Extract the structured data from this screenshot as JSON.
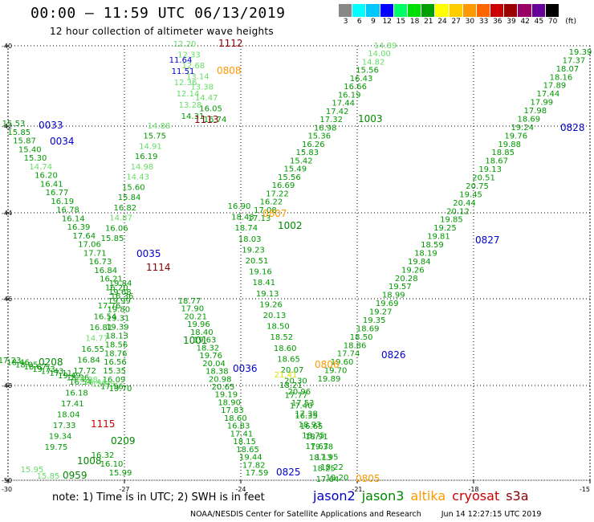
{
  "header": {
    "title": "00:00 – 11:59 UTC 06/13/2019",
    "subtitle": "12 hour collection of altimeter wave heights"
  },
  "legend": {
    "unit": "(ft)",
    "labels": [
      "3",
      "6",
      "9",
      "12",
      "15",
      "18",
      "21",
      "24",
      "27",
      "30",
      "33",
      "36",
      "39",
      "42",
      "45",
      "70"
    ],
    "colors": [
      "#888888",
      "#00ffff",
      "#00c8ff",
      "#0000ff",
      "#00ff66",
      "#00dd00",
      "#00a000",
      "#ffff00",
      "#ffcc00",
      "#ff9900",
      "#ff6600",
      "#cc0000",
      "#990000",
      "#990066",
      "#660099",
      "#000000"
    ]
  },
  "axes": {
    "lat_labels": [
      "-40",
      "-42",
      "-44",
      "-46",
      "-48",
      "-50"
    ],
    "lon_labels": [
      "-30",
      "-27",
      "-24",
      "-21",
      "-18",
      "-15"
    ]
  },
  "satellites": [
    {
      "name": "jason2",
      "color": "#0000cc"
    },
    {
      "name": "jason3",
      "color": "#008800"
    },
    {
      "name": "altika",
      "color": "#ff9900"
    },
    {
      "name": "cryosat",
      "color": "#cc0000"
    },
    {
      "name": "s3a",
      "color": "#880000"
    }
  ],
  "note": "note:  1) Time is in UTC;  2) SWH is in feet",
  "credit": "NOAA/NESDIS Center for Satellite Applications and Research",
  "timestamp": "Jun 14 12:27:15 UTC 2019",
  "tracks": [
    {
      "time": "1112",
      "color": "#880000",
      "values": [
        "12.20",
        "12.33",
        "12.68",
        "13.14",
        "13.38",
        "14.47",
        "16.05",
        "16.74"
      ],
      "cmap": [
        "#66dd66",
        "#66dd66",
        "#66dd66",
        "#66dd66",
        "#66dd66",
        "#66dd66",
        "#009900",
        "#009900"
      ]
    },
    {
      "time": "0808",
      "color": "#ff9900",
      "values": [
        "11.64",
        "11.51",
        "12.36",
        "12.14",
        "13.28",
        "14.31"
      ],
      "cmap": [
        "#0000cc",
        "#0000cc",
        "#66dd66",
        "#66dd66",
        "#66dd66",
        "#009900"
      ]
    },
    {
      "time": "1113",
      "color": "#880000",
      "values": [
        "14.88",
        "15.75",
        "14.91",
        "16.19",
        "14.98",
        "14.43",
        "15.60",
        "15.84",
        "16.82",
        "14.87",
        "16.06",
        "15.85"
      ],
      "cmap": [
        "#66dd66",
        "#009900",
        "#66dd66",
        "#009900",
        "#66dd66",
        "#66dd66",
        "#009900",
        "#009900",
        "#009900",
        "#66dd66",
        "#009900",
        "#009900"
      ]
    },
    {
      "time": "0033",
      "color": "#0000cc",
      "values": [
        "15.53",
        "15.85",
        "15.87",
        "15.40",
        "15.30",
        "14.74",
        "16.20",
        "16.41",
        "16.77",
        "16.19",
        "16.78",
        "16.14",
        "16.39",
        "17.64",
        "17.06",
        "17.71",
        "16.73",
        "16.84",
        "16.21",
        "16.20",
        "16.36"
      ],
      "cmap": [
        "#009900",
        "#009900",
        "#009900",
        "#009900",
        "#009900",
        "#66dd66",
        "#009900",
        "#009900",
        "#009900",
        "#009900",
        "#009900",
        "#009900",
        "#009900",
        "#009900",
        "#009900",
        "#009900",
        "#009900",
        "#009900",
        "#009900",
        "#009900",
        "#009900"
      ]
    },
    {
      "time": "0034",
      "color": "#0000cc",
      "values": [],
      "cmap": []
    },
    {
      "time": "1003",
      "color": "#008800",
      "values": [
        "14.89",
        "14.00",
        "14.82",
        "15.56",
        "16.43",
        "16.66",
        "16.19",
        "17.44",
        "17.42",
        "17.32",
        "16.98",
        "15.36",
        "16.26",
        "15.83",
        "15.42",
        "15.49",
        "15.56",
        "16.69",
        "17.22",
        "16.22",
        "17.08",
        "17.13"
      ],
      "cmap": [
        "#66dd66",
        "#66dd66",
        "#66dd66",
        "#009900",
        "#009900",
        "#009900",
        "#009900",
        "#009900",
        "#009900",
        "#009900",
        "#009900",
        "#009900",
        "#009900",
        "#009900",
        "#009900",
        "#009900",
        "#009900",
        "#009900",
        "#009900",
        "#009900",
        "#009900",
        "#009900"
      ]
    },
    {
      "time": "0807",
      "color": "#ff9900",
      "values": [
        "16.90",
        "18.43",
        "18.74",
        "18.03",
        "19.23",
        "20.51",
        "19.16",
        "18.41",
        "19.13",
        "19.26",
        "20.13",
        "18.50",
        "18.52",
        "18.60",
        "18.65",
        "20.07",
        "20.30",
        "20.96",
        "17.53",
        "17.38",
        "18.93",
        "18.75",
        "17.67",
        "18.13",
        "18.25",
        "17.64"
      ],
      "cmap": [
        "#009900",
        "#009900",
        "#009900",
        "#009900",
        "#009900",
        "#009900",
        "#009900",
        "#009900",
        "#009900",
        "#009900",
        "#009900",
        "#009900",
        "#009900",
        "#009900",
        "#009900",
        "#009900",
        "#009900",
        "#009900",
        "#009900",
        "#009900",
        "#009900",
        "#009900",
        "#009900",
        "#009900",
        "#009900",
        "#009900"
      ]
    },
    {
      "time": "1002",
      "color": "#008800",
      "values": [],
      "cmap": []
    },
    {
      "time": "0828",
      "color": "#0000cc",
      "values": [
        "19.39",
        "17.37",
        "18.07",
        "18.16",
        "17.89",
        "17.44",
        "17.99",
        "17.98",
        "18.69",
        "19.24",
        "19.76",
        "19.88",
        "18.85",
        "18.67",
        "19.13",
        "20.51",
        "20.75",
        "19.45",
        "20.44",
        "20.12",
        "19.85",
        "19.25",
        "19.81",
        "18.59",
        "18.19",
        "19.84",
        "19.26",
        "20.28",
        "19.57",
        "18.99",
        "19.69",
        "19.27",
        "19.35",
        "18.69",
        "18.50",
        "18.86",
        "17.74",
        "19.60",
        "19.70",
        "19.89"
      ],
      "cmap": [
        "#009900",
        "#009900",
        "#009900",
        "#009900",
        "#009900",
        "#009900",
        "#009900",
        "#009900",
        "#009900",
        "#009900",
        "#009900",
        "#009900",
        "#009900",
        "#009900",
        "#009900",
        "#009900",
        "#009900",
        "#009900",
        "#009900",
        "#009900",
        "#009900",
        "#009900",
        "#009900",
        "#009900",
        "#009900",
        "#009900",
        "#009900",
        "#009900",
        "#009900",
        "#009900",
        "#009900",
        "#009900",
        "#009900",
        "#009900",
        "#009900",
        "#009900",
        "#009900",
        "#009900",
        "#009900",
        "#009900"
      ]
    },
    {
      "time": "0827",
      "color": "#0000cc",
      "values": [],
      "cmap": []
    },
    {
      "time": "0826",
      "color": "#0000cc",
      "values": [],
      "cmap": []
    },
    {
      "time": "0806",
      "color": "#ff9900",
      "values": [
        "21.41",
        "18.21",
        "17.77",
        "17.40",
        "16.35",
        "16.65",
        "18.91",
        "19.38",
        "17.95",
        "18.22",
        "19.20"
      ],
      "cmap": [
        "#dddd00",
        "#009900",
        "#009900",
        "#009900",
        "#009900",
        "#009900",
        "#009900",
        "#009900",
        "#009900",
        "#009900",
        "#009900"
      ]
    },
    {
      "time": "0805",
      "color": "#ff9900",
      "values": [],
      "cmap": []
    },
    {
      "time": "0035",
      "color": "#0000cc",
      "values": [
        "19.84",
        "19.68",
        "19.99",
        "19.80",
        "19.31",
        "19.39",
        "18.13",
        "18.56",
        "18.76",
        "16.56",
        "15.35",
        "16.09"
      ],
      "cmap": [
        "#009900",
        "#009900",
        "#009900",
        "#009900",
        "#009900",
        "#009900",
        "#009900",
        "#009900",
        "#009900",
        "#009900",
        "#009900",
        "#009900"
      ]
    },
    {
      "time": "1114",
      "color": "#880000",
      "values": [
        "17.76",
        "16.54",
        "16.81",
        "14.77",
        "16.55",
        "16.84",
        "17.72",
        "16.54",
        "16.18",
        "17.41",
        "18.04",
        "17.33",
        "19.34",
        "19.75"
      ],
      "cmap": [
        "#009900",
        "#009900",
        "#009900",
        "#66dd66",
        "#009900",
        "#009900",
        "#009900",
        "#009900",
        "#009900",
        "#009900",
        "#009900",
        "#009900",
        "#009900",
        "#009900"
      ]
    },
    {
      "time": "1001",
      "color": "#008800",
      "values": [
        "18.77",
        "17.90",
        "20.21",
        "19.96",
        "18.40",
        "19.63",
        "18.32",
        "19.76",
        "20.04",
        "18.38",
        "20.98",
        "20.65",
        "19.19",
        "18.90",
        "17.83",
        "18.60",
        "16.83",
        "17.41",
        "18.15",
        "18.65",
        "19.44",
        "17.82",
        "17.59"
      ],
      "cmap": [
        "#009900",
        "#009900",
        "#009900",
        "#009900",
        "#009900",
        "#009900",
        "#009900",
        "#009900",
        "#009900",
        "#009900",
        "#009900",
        "#009900",
        "#009900",
        "#009900",
        "#009900",
        "#009900",
        "#009900",
        "#009900",
        "#009900",
        "#009900",
        "#009900",
        "#009900",
        "#009900"
      ]
    },
    {
      "time": "0036",
      "color": "#0000cc",
      "values": [],
      "cmap": []
    },
    {
      "time": "0208",
      "color": "#008800",
      "values": [
        "17.23",
        "18.46",
        "18.05",
        "18.67",
        "19.73",
        "17.43",
        "17.11",
        "19.49",
        "18.36",
        "16.88",
        "16.44",
        "15.95",
        "17.56",
        "19.70"
      ],
      "cmap": [
        "#009900",
        "#009900",
        "#009900",
        "#009900",
        "#009900",
        "#009900",
        "#009900",
        "#009900",
        "#009900",
        "#66dd66",
        "#66dd66",
        "#66dd66",
        "#009900",
        "#009900"
      ]
    },
    {
      "time": "1115",
      "color": "#cc0000",
      "values": [],
      "cmap": []
    },
    {
      "time": "0209",
      "color": "#008800",
      "values": [
        "16.32",
        "16.10",
        "15.99"
      ],
      "cmap": [
        "#009900",
        "#009900",
        "#009900"
      ]
    },
    {
      "time": "1008",
      "color": "#008800",
      "values": [],
      "cmap": []
    },
    {
      "time": "0959",
      "color": "#008800",
      "values": [
        "15.95",
        "15.85"
      ],
      "cmap": [
        "#66dd66",
        "#66dd66"
      ]
    },
    {
      "time": "0825",
      "color": "#0000cc",
      "values": [],
      "cmap": []
    }
  ]
}
